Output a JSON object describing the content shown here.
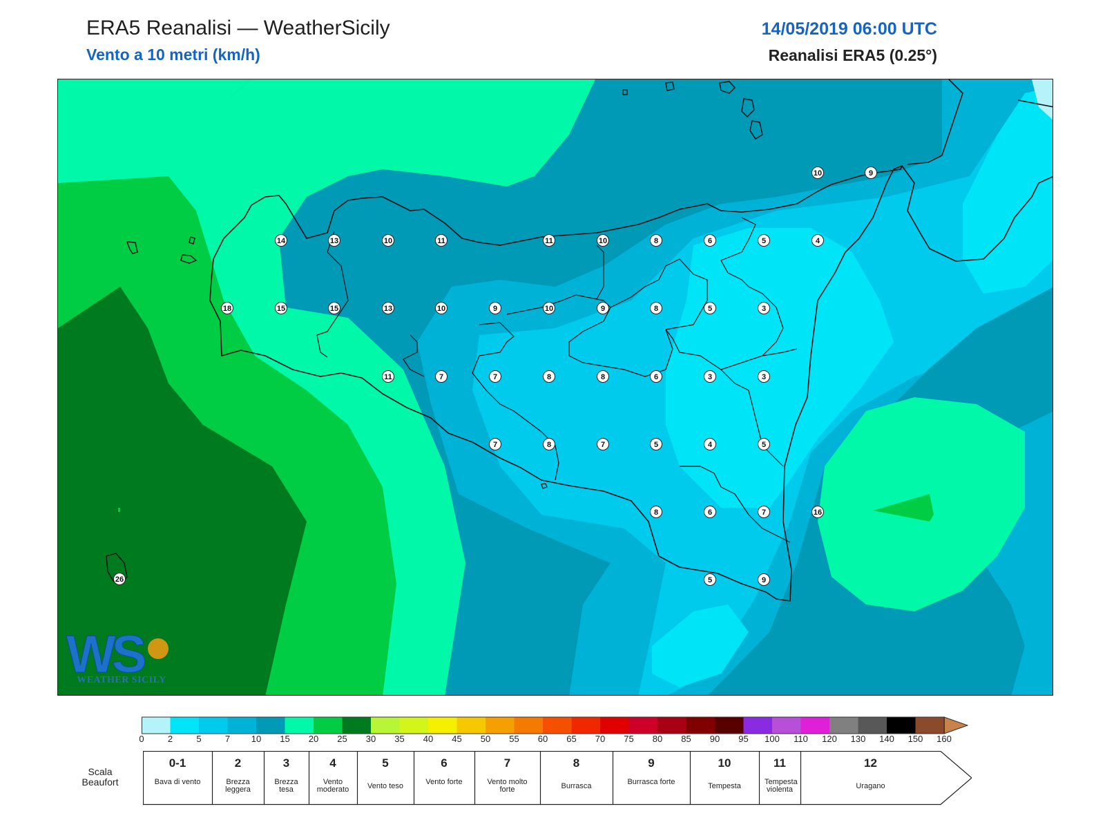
{
  "header": {
    "title": "ERA5 Reanalisi — WeatherSicily",
    "subtitle": "Vento a 10 metri (km/h)",
    "datetime": "14/05/2019 06:00 UTC",
    "source": "Reanalisi ERA5 (0.25°)"
  },
  "colors": {
    "accent": "#1565c0",
    "fill_0_2": "#b3f3f9",
    "fill_2_5": "#00e4f8",
    "fill_5_7": "#00cbec",
    "fill_7_10": "#00b3d6",
    "fill_10_15": "#0099b6",
    "fill_15_20": "#00f8a8",
    "fill_20_25": "#00cc44",
    "fill_25_30": "#007a1e"
  },
  "map": {
    "wind_labels": [
      "14",
      "13",
      "10",
      "11",
      "11",
      "10",
      "8",
      "6",
      "5",
      "4",
      "10",
      "9",
      "18",
      "15",
      "15",
      "13",
      "10",
      "9",
      "10",
      "9",
      "8",
      "5",
      "3",
      "11",
      "7",
      "7",
      "8",
      "8",
      "6",
      "3",
      "3",
      "7",
      "8",
      "7",
      "5",
      "4",
      "5",
      "8",
      "6",
      "7",
      "16",
      "5",
      "9",
      "26"
    ]
  },
  "logo": {
    "text": "WEATHER SICILY",
    "letters": "WS"
  },
  "colorbar": {
    "ticks": [
      "0",
      "2",
      "5",
      "7",
      "10",
      "15",
      "20",
      "25",
      "30",
      "35",
      "40",
      "45",
      "50",
      "55",
      "60",
      "65",
      "70",
      "75",
      "80",
      "85",
      "90",
      "95",
      "100",
      "110",
      "120",
      "130",
      "140",
      "150",
      "160"
    ],
    "colors": [
      "#b3f3f9",
      "#00e4f8",
      "#00cbec",
      "#00b3d6",
      "#0099b6",
      "#00f8a8",
      "#00cc44",
      "#007a1e",
      "#b8f536",
      "#d4f51a",
      "#f5f000",
      "#f5c800",
      "#f5a000",
      "#f57a00",
      "#f55000",
      "#f02800",
      "#e00000",
      "#cc0028",
      "#a80014",
      "#800000",
      "#580000",
      "#8a2be2",
      "#b74fd8",
      "#e020d8",
      "#808080",
      "#585858",
      "#000000",
      "#8b4a2b",
      "#c8824a"
    ]
  },
  "beaufort": {
    "label": "Scala Beaufort",
    "cells": [
      {
        "num": "0-1",
        "name": "Bava di vento"
      },
      {
        "num": "2",
        "name": "Brezza leggera"
      },
      {
        "num": "3",
        "name": "Brezza tesa"
      },
      {
        "num": "4",
        "name": "Vento moderato"
      },
      {
        "num": "5",
        "name": "Vento teso"
      },
      {
        "num": "6",
        "name": "Vento forte"
      },
      {
        "num": "7",
        "name": "Vento molto forte"
      },
      {
        "num": "8",
        "name": "Burrasca"
      },
      {
        "num": "9",
        "name": "Burrasca forte"
      },
      {
        "num": "10",
        "name": "Tempesta"
      },
      {
        "num": "11",
        "name": "Tempesta violenta"
      },
      {
        "num": "12",
        "name": "Uragano"
      }
    ]
  }
}
